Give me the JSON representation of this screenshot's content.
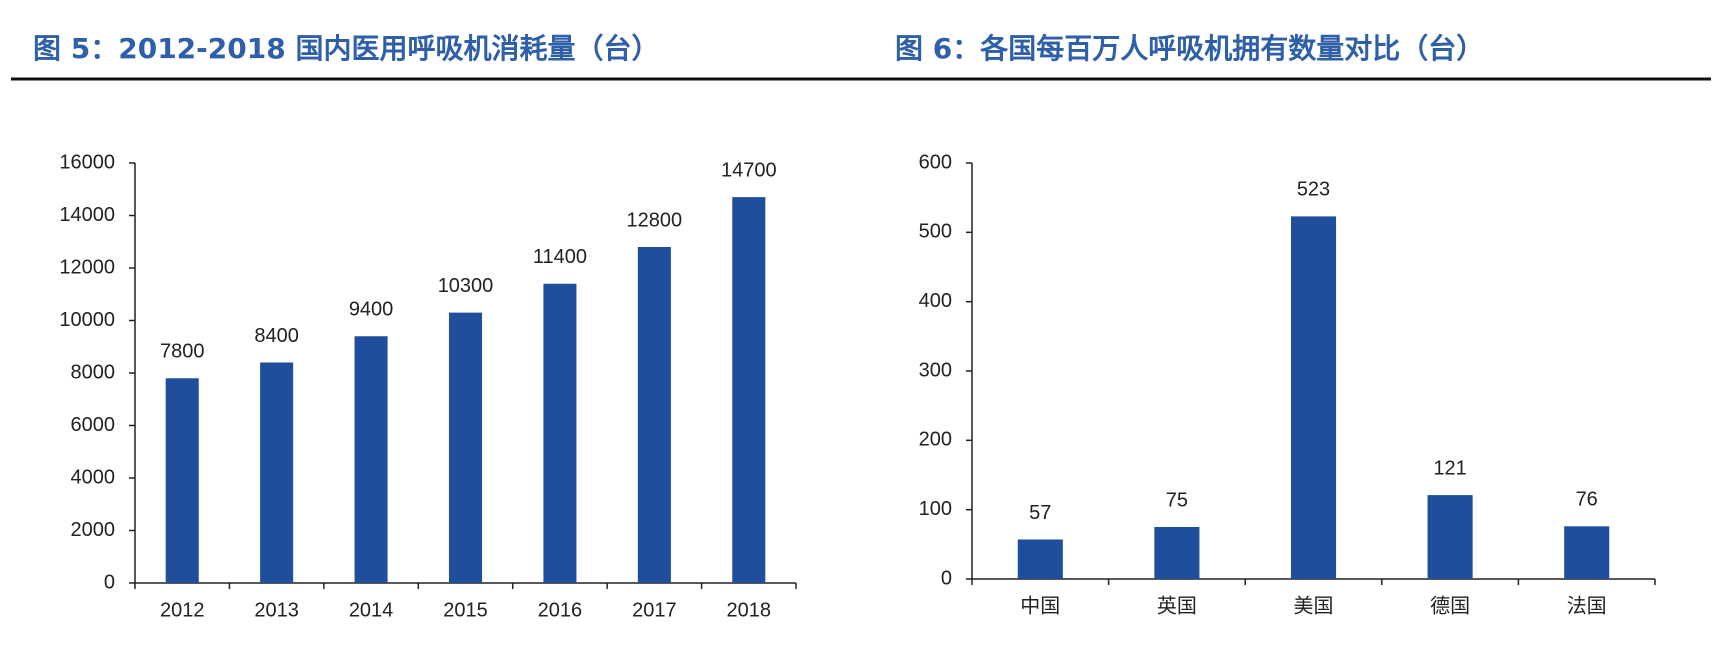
{
  "chart_data": [
    {
      "type": "bar",
      "title": "图 5：2012-2018 国内医用呼吸机消耗量（台）",
      "categories": [
        "2012",
        "2013",
        "2014",
        "2015",
        "2016",
        "2017",
        "2018"
      ],
      "values": [
        7800,
        8400,
        9400,
        10300,
        11400,
        12800,
        14700
      ],
      "color": "#1f4e9c",
      "ylim": [
        0,
        16000
      ],
      "yticks": [
        0,
        2000,
        4000,
        6000,
        8000,
        10000,
        12000,
        14000,
        16000
      ],
      "grid": false
    },
    {
      "type": "bar",
      "title": "图 6：各国每百万人呼吸机拥有数量对比（台）",
      "categories": [
        "中国",
        "英国",
        "美国",
        "德国",
        "法国"
      ],
      "values": [
        57,
        75,
        523,
        121,
        76
      ],
      "color": "#1f4e9c",
      "ylim": [
        0,
        600
      ],
      "yticks": [
        0,
        100,
        200,
        300,
        400,
        500,
        600
      ],
      "grid": false
    }
  ]
}
